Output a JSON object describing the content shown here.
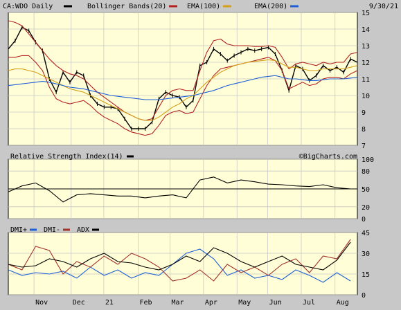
{
  "header": {
    "symbol_label": "CA:WDO Daily",
    "legend": [
      {
        "label": "Bollinger Bands(20)",
        "color": "#b22222"
      },
      {
        "label": "EMA(100)",
        "color": "#d4a017"
      },
      {
        "label": "EMA(200)",
        "color": "#1e5fd6"
      }
    ],
    "date": "9/30/21"
  },
  "watermark": "©BigCharts.com",
  "icons": {
    "legend_swatch": "line-swatch"
  },
  "chart_data": [
    {
      "type": "line",
      "title": "CA:WDO Daily",
      "x_ticks": [
        "Nov",
        "Dec",
        "21",
        "Feb",
        "Mar",
        "Apr",
        "May",
        "Jun",
        "Jul",
        "Aug",
        "Sep"
      ],
      "y_ticks": [
        7,
        8,
        9,
        10,
        11,
        12,
        13,
        14,
        15
      ],
      "ylim": [
        7,
        15
      ],
      "grid": true,
      "legend_placement": "top",
      "x": [
        0,
        5,
        10,
        15,
        20,
        25,
        30,
        35,
        40,
        45,
        50,
        55,
        60,
        65,
        70,
        75,
        80,
        85,
        90,
        95,
        100,
        105,
        110,
        115,
        120,
        125,
        130,
        135,
        140,
        145,
        150,
        155,
        160,
        165,
        170,
        175,
        180,
        185,
        190,
        195,
        200,
        205,
        210,
        215,
        220,
        225,
        230,
        235,
        240,
        245,
        250,
        255
      ],
      "series": [
        {
          "name": "Price",
          "color": "#000000",
          "values": [
            12.8,
            13.3,
            14.1,
            13.9,
            13.2,
            12.7,
            11.0,
            10.2,
            11.4,
            10.8,
            11.4,
            11.2,
            10.0,
            9.5,
            9.3,
            9.3,
            9.2,
            8.6,
            8.0,
            8.0,
            8.0,
            8.4,
            9.8,
            10.2,
            10.0,
            9.9,
            9.3,
            9.7,
            11.8,
            12.0,
            12.8,
            12.5,
            12.1,
            12.4,
            12.6,
            12.8,
            12.7,
            12.8,
            12.9,
            12.5,
            11.5,
            10.3,
            11.8,
            11.6,
            10.9,
            11.2,
            11.8,
            11.5,
            11.7,
            11.4,
            12.2,
            12.0
          ]
        },
        {
          "name": "Bollinger Bands(20)",
          "color": "#b22222",
          "values": [
            14.5,
            14.4,
            14.2,
            13.7,
            13.2,
            12.7,
            12.2,
            11.8,
            11.5,
            11.3,
            11.2,
            11.0,
            10.6,
            10.2,
            9.9,
            9.6,
            9.3,
            9.0,
            8.8,
            8.6,
            8.5,
            8.6,
            9.3,
            10.0,
            10.3,
            10.4,
            10.3,
            10.3,
            11.5,
            12.6,
            13.3,
            13.4,
            13.1,
            13.0,
            13.0,
            13.0,
            12.95,
            12.95,
            13.0,
            12.9,
            12.3,
            11.6,
            11.9,
            12.0,
            11.9,
            11.8,
            12.0,
            11.9,
            12.0,
            12.0,
            12.5,
            12.6
          ]
        },
        {
          "name": "Bollinger Bands(20)",
          "color": "#b22222",
          "values": [
            12.3,
            12.3,
            12.4,
            12.4,
            12.0,
            11.5,
            10.5,
            9.8,
            9.6,
            9.5,
            9.6,
            9.7,
            9.4,
            9.0,
            8.7,
            8.5,
            8.3,
            8.0,
            7.8,
            7.7,
            7.6,
            7.7,
            8.2,
            8.8,
            9.0,
            9.1,
            8.9,
            9.0,
            9.8,
            10.6,
            11.2,
            11.6,
            11.7,
            11.8,
            11.9,
            12.0,
            12.1,
            12.2,
            12.3,
            12.1,
            11.5,
            10.4,
            10.6,
            10.8,
            10.6,
            10.7,
            11.0,
            11.1,
            11.1,
            11.0,
            11.3,
            11.5
          ]
        },
        {
          "name": "EMA(100)",
          "color": "#d4a017",
          "values": [
            11.5,
            11.6,
            11.6,
            11.5,
            11.4,
            11.2,
            11.0,
            10.8,
            10.6,
            10.4,
            10.3,
            10.2,
            10.0,
            9.8,
            9.6,
            9.4,
            9.2,
            9.0,
            8.8,
            8.6,
            8.5,
            8.5,
            8.7,
            9.0,
            9.3,
            9.5,
            9.8,
            10.0,
            10.4,
            10.8,
            11.1,
            11.4,
            11.6,
            11.8,
            11.9,
            12.0,
            12.05,
            12.1,
            12.15,
            12.1,
            11.9,
            11.7,
            11.7,
            11.6,
            11.5,
            11.5,
            11.6,
            11.6,
            11.6,
            11.6,
            11.7,
            11.8
          ]
        },
        {
          "name": "EMA(200)",
          "color": "#1e5fd6",
          "values": [
            10.6,
            10.65,
            10.7,
            10.75,
            10.8,
            10.85,
            10.8,
            10.7,
            10.6,
            10.5,
            10.45,
            10.4,
            10.3,
            10.2,
            10.1,
            10.0,
            9.95,
            9.9,
            9.85,
            9.8,
            9.75,
            9.75,
            9.75,
            9.8,
            9.85,
            9.9,
            9.95,
            10.0,
            10.1,
            10.2,
            10.3,
            10.45,
            10.6,
            10.7,
            10.8,
            10.9,
            11.0,
            11.1,
            11.15,
            11.2,
            11.1,
            11.0,
            11.0,
            10.95,
            10.9,
            10.9,
            10.95,
            11.0,
            11.0,
            11.0,
            11.05,
            11.1
          ]
        }
      ]
    },
    {
      "type": "line",
      "title": "Relative Strength Index(14)",
      "x_ticks": [
        "Nov",
        "Dec",
        "21",
        "Feb",
        "Mar",
        "Apr",
        "May",
        "Jun",
        "Jul",
        "Aug",
        "Sep"
      ],
      "y_ticks": [
        0,
        20,
        50,
        80,
        100
      ],
      "ylim": [
        0,
        100
      ],
      "reference_line": 50,
      "grid": true,
      "legend_placement": "top-left",
      "x": [
        0,
        10,
        20,
        30,
        40,
        50,
        60,
        70,
        80,
        90,
        100,
        110,
        120,
        130,
        140,
        150,
        160,
        170,
        180,
        190,
        200,
        210,
        220,
        230,
        240,
        250
      ],
      "series": [
        {
          "name": "Relative Strength Index(14)",
          "color": "#000000",
          "values": [
            45,
            55,
            60,
            47,
            28,
            40,
            42,
            40,
            38,
            38,
            35,
            38,
            40,
            35,
            65,
            70,
            60,
            65,
            62,
            58,
            57,
            55,
            54,
            57,
            52,
            50
          ]
        }
      ]
    },
    {
      "type": "line",
      "title": "",
      "x_ticks": [
        "Nov",
        "Dec",
        "21",
        "Feb",
        "Mar",
        "Apr",
        "May",
        "Jun",
        "Jul",
        "Aug",
        "Sep"
      ],
      "y_ticks": [
        0,
        15,
        30,
        45
      ],
      "ylim": [
        0,
        45
      ],
      "grid": true,
      "legend_placement": "top-left",
      "x": [
        0,
        10,
        20,
        30,
        40,
        50,
        60,
        70,
        80,
        90,
        100,
        110,
        120,
        130,
        140,
        150,
        160,
        170,
        180,
        190,
        200,
        210,
        220,
        230,
        240,
        250
      ],
      "series": [
        {
          "name": "DMI+",
          "color": "#1e5fd6",
          "values": [
            18,
            14,
            16,
            15,
            17,
            12,
            20,
            14,
            18,
            12,
            16,
            14,
            22,
            30,
            33,
            26,
            14,
            18,
            12,
            14,
            11,
            18,
            14,
            9,
            16,
            10
          ]
        },
        {
          "name": "DMI-",
          "color": "#a0302c",
          "values": [
            22,
            18,
            35,
            32,
            15,
            24,
            20,
            28,
            22,
            30,
            26,
            20,
            10,
            12,
            18,
            10,
            22,
            16,
            20,
            14,
            22,
            26,
            16,
            28,
            26,
            40
          ]
        },
        {
          "name": "ADX",
          "color": "#000000",
          "values": [
            22,
            20,
            21,
            26,
            24,
            20,
            26,
            30,
            24,
            23,
            20,
            18,
            22,
            28,
            24,
            34,
            30,
            24,
            20,
            24,
            28,
            22,
            20,
            18,
            25,
            38
          ]
        }
      ]
    }
  ]
}
